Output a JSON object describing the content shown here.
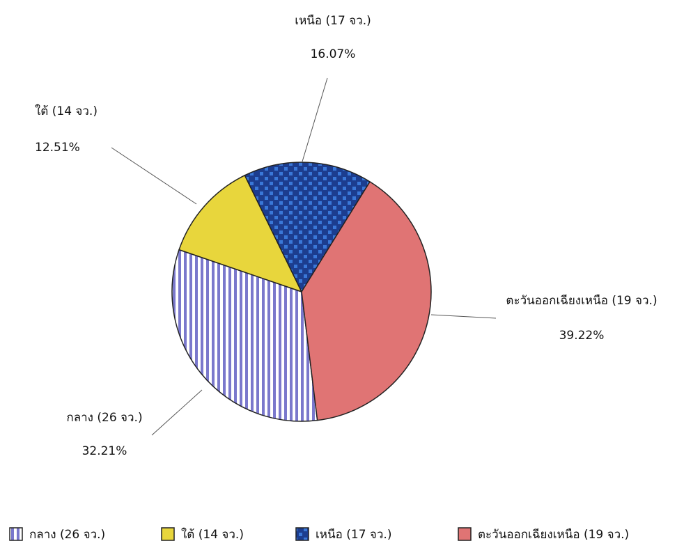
{
  "chart_data": {
    "type": "pie",
    "categories": [
      "กลาง (26 จว.)",
      "ใต้ (14 จว.)",
      "เหนือ (17 จว.)",
      "ตะวันออกเฉียงเหนือ (19 จว.)"
    ],
    "values": [
      32.21,
      12.51,
      16.07,
      39.22
    ],
    "value_labels": [
      "32.21%",
      "12.51%",
      "16.07%",
      "39.22%"
    ],
    "colors": [
      "#7a78cc",
      "#e8d63c",
      "#1c3d8f",
      "#e07474"
    ],
    "legend": "bottom"
  }
}
